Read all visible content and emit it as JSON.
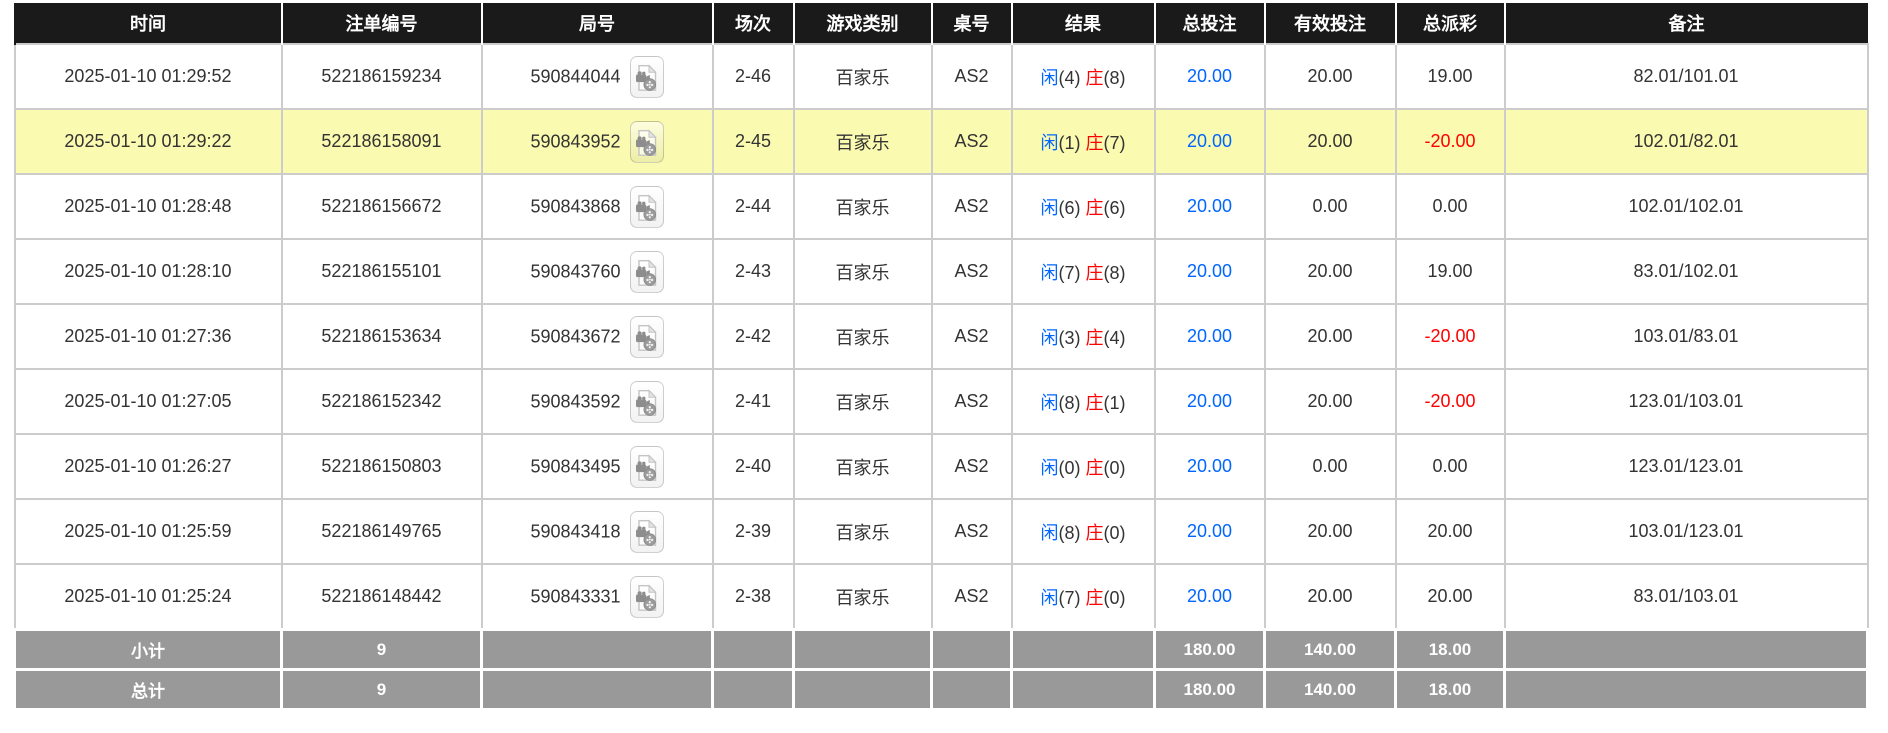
{
  "table": {
    "columns": [
      {
        "key": "time",
        "label": "时间"
      },
      {
        "key": "bet_id",
        "label": "注单编号"
      },
      {
        "key": "round_id",
        "label": "局号"
      },
      {
        "key": "session",
        "label": "场次"
      },
      {
        "key": "game_type",
        "label": "游戏类别"
      },
      {
        "key": "table_no",
        "label": "桌号"
      },
      {
        "key": "result",
        "label": "结果"
      },
      {
        "key": "total_bet",
        "label": "总投注"
      },
      {
        "key": "valid_bet",
        "label": "有效投注"
      },
      {
        "key": "total_payout",
        "label": "总派彩"
      },
      {
        "key": "remark",
        "label": "备注"
      }
    ],
    "rows": [
      {
        "time": "2025-01-10 01:29:52",
        "bet_id": "522186159234",
        "round_id": "590844044",
        "session": "2-46",
        "game_type": "百家乐",
        "table_no": "AS2",
        "result_player_label": "闲",
        "result_player_value": "(4)",
        "result_banker_label": "庄",
        "result_banker_value": "(8)",
        "total_bet": "20.00",
        "valid_bet": "20.00",
        "total_payout": "19.00",
        "remark": "82.01/101.01",
        "highlighted": false
      },
      {
        "time": "2025-01-10 01:29:22",
        "bet_id": "522186158091",
        "round_id": "590843952",
        "session": "2-45",
        "game_type": "百家乐",
        "table_no": "AS2",
        "result_player_label": "闲",
        "result_player_value": "(1)",
        "result_banker_label": "庄",
        "result_banker_value": "(7)",
        "total_bet": "20.00",
        "valid_bet": "20.00",
        "total_payout": "-20.00",
        "remark": "102.01/82.01",
        "highlighted": true
      },
      {
        "time": "2025-01-10 01:28:48",
        "bet_id": "522186156672",
        "round_id": "590843868",
        "session": "2-44",
        "game_type": "百家乐",
        "table_no": "AS2",
        "result_player_label": "闲",
        "result_player_value": "(6)",
        "result_banker_label": "庄",
        "result_banker_value": "(6)",
        "total_bet": "20.00",
        "valid_bet": "0.00",
        "total_payout": "0.00",
        "remark": "102.01/102.01",
        "highlighted": false
      },
      {
        "time": "2025-01-10 01:28:10",
        "bet_id": "522186155101",
        "round_id": "590843760",
        "session": "2-43",
        "game_type": "百家乐",
        "table_no": "AS2",
        "result_player_label": "闲",
        "result_player_value": "(7)",
        "result_banker_label": "庄",
        "result_banker_value": "(8)",
        "total_bet": "20.00",
        "valid_bet": "20.00",
        "total_payout": "19.00",
        "remark": "83.01/102.01",
        "highlighted": false
      },
      {
        "time": "2025-01-10 01:27:36",
        "bet_id": "522186153634",
        "round_id": "590843672",
        "session": "2-42",
        "game_type": "百家乐",
        "table_no": "AS2",
        "result_player_label": "闲",
        "result_player_value": "(3)",
        "result_banker_label": "庄",
        "result_banker_value": "(4)",
        "total_bet": "20.00",
        "valid_bet": "20.00",
        "total_payout": "-20.00",
        "remark": "103.01/83.01",
        "highlighted": false
      },
      {
        "time": "2025-01-10 01:27:05",
        "bet_id": "522186152342",
        "round_id": "590843592",
        "session": "2-41",
        "game_type": "百家乐",
        "table_no": "AS2",
        "result_player_label": "闲",
        "result_player_value": "(8)",
        "result_banker_label": "庄",
        "result_banker_value": "(1)",
        "total_bet": "20.00",
        "valid_bet": "20.00",
        "total_payout": "-20.00",
        "remark": "123.01/103.01",
        "highlighted": false
      },
      {
        "time": "2025-01-10 01:26:27",
        "bet_id": "522186150803",
        "round_id": "590843495",
        "session": "2-40",
        "game_type": "百家乐",
        "table_no": "AS2",
        "result_player_label": "闲",
        "result_player_value": "(0)",
        "result_banker_label": "庄",
        "result_banker_value": "(0)",
        "total_bet": "20.00",
        "valid_bet": "0.00",
        "total_payout": "0.00",
        "remark": "123.01/123.01",
        "highlighted": false
      },
      {
        "time": "2025-01-10 01:25:59",
        "bet_id": "522186149765",
        "round_id": "590843418",
        "session": "2-39",
        "game_type": "百家乐",
        "table_no": "AS2",
        "result_player_label": "闲",
        "result_player_value": "(8)",
        "result_banker_label": "庄",
        "result_banker_value": "(0)",
        "total_bet": "20.00",
        "valid_bet": "20.00",
        "total_payout": "20.00",
        "remark": "103.01/123.01",
        "highlighted": false
      },
      {
        "time": "2025-01-10 01:25:24",
        "bet_id": "522186148442",
        "round_id": "590843331",
        "session": "2-38",
        "game_type": "百家乐",
        "table_no": "AS2",
        "result_player_label": "闲",
        "result_player_value": "(7)",
        "result_banker_label": "庄",
        "result_banker_value": "(0)",
        "total_bet": "20.00",
        "valid_bet": "20.00",
        "total_payout": "20.00",
        "remark": "83.01/103.01",
        "highlighted": false
      }
    ],
    "subtotal": {
      "label": "小计",
      "count": "9",
      "total_bet": "180.00",
      "valid_bet": "140.00",
      "total_payout": "18.00"
    },
    "total": {
      "label": "总计",
      "count": "9",
      "total_bet": "180.00",
      "valid_bet": "140.00",
      "total_payout": "18.00"
    }
  },
  "icons": {
    "round_video_icon": "video-file-icon"
  },
  "colors": {
    "header_bg": "#1a1a1a",
    "accent_blue": "#0066ff",
    "accent_red": "#ff0000",
    "highlight_yellow": "#fafab0",
    "summary_gray": "#999999",
    "grid_line": "#cccccc"
  }
}
